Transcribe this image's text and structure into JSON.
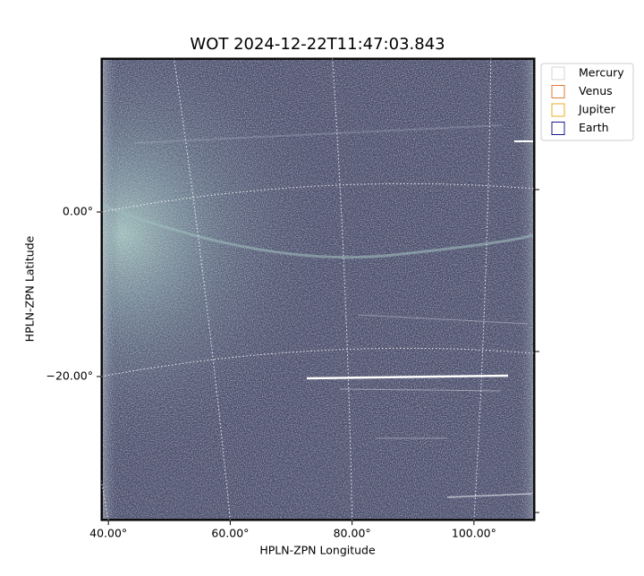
{
  "chart_data": {
    "type": "image",
    "title": "WOT 2024-12-22T11:47:03.843",
    "xlabel": "HPLN-ZPN Longitude",
    "ylabel": "HPLN-ZPN Latitude",
    "xlim": [
      38.8,
      110.0
    ],
    "ylim": [
      -37.5,
      18.7
    ],
    "xticks": [
      {
        "value": 40,
        "label": "40.00°"
      },
      {
        "value": 60,
        "label": "60.00°"
      },
      {
        "value": 80,
        "label": "80.00°"
      },
      {
        "value": 100,
        "label": "100.00°"
      }
    ],
    "yticks": [
      {
        "value": 0,
        "label": "0.00°"
      },
      {
        "value": -20,
        "label": "−20.00°"
      }
    ],
    "grid": true,
    "legend": {
      "loc": "upper left outside",
      "entries": [
        {
          "name": "Mercury",
          "color": "#d3d3d3"
        },
        {
          "name": "Venus",
          "color": "#e07b39"
        },
        {
          "name": "Jupiter",
          "color": "#e8b21c"
        },
        {
          "name": "Earth",
          "color": "#1a1a8c"
        }
      ]
    }
  }
}
